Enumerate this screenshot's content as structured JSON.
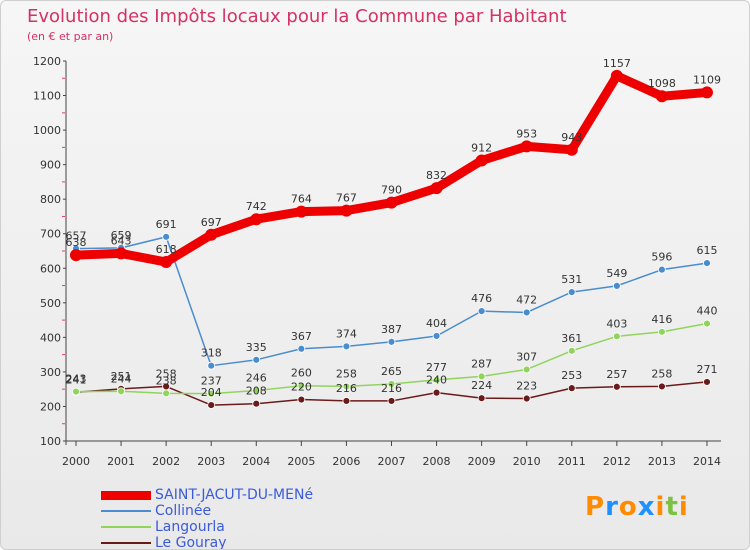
{
  "header": {
    "title": "Evolution des Impôts locaux pour la Commune par Habitant",
    "subtitle": "(en € et par an)"
  },
  "logo": {
    "letters": [
      "P",
      "r",
      "o",
      "x",
      "i",
      "t",
      "i"
    ],
    "colors": [
      "#ff8c00",
      "#1e90ff",
      "#ff8c00",
      "#1e90ff",
      "#ff8c00",
      "#7cc242",
      "#ff8c00"
    ]
  },
  "chart_data": {
    "type": "line",
    "categories": [
      "2000",
      "2001",
      "2002",
      "2003",
      "2004",
      "2005",
      "2006",
      "2007",
      "2008",
      "2009",
      "2010",
      "2011",
      "2012",
      "2013",
      "2014"
    ],
    "ylim": [
      100,
      1200
    ],
    "yticks": [
      "100",
      "200",
      "300",
      "400",
      "500",
      "600",
      "700",
      "800",
      "900",
      "1000",
      "1100",
      "1200"
    ],
    "title": "Evolution des Impôts locaux pour la Commune par Habitant",
    "subtitle": "(en € et par an)",
    "xlabel": "",
    "ylabel": "",
    "grid": false,
    "legend_position": "bottom-left",
    "series": [
      {
        "name": "SAINT-JACUT-DU-MENé",
        "color": "#ee0000",
        "values": [
          638,
          643,
          618,
          697,
          742,
          764,
          767,
          790,
          832,
          912,
          953,
          943,
          1157,
          1098,
          1109
        ]
      },
      {
        "name": "Collinée",
        "color": "#4a8cd0",
        "values": [
          657,
          659,
          691,
          318,
          335,
          367,
          374,
          387,
          404,
          476,
          472,
          531,
          549,
          596,
          615
        ]
      },
      {
        "name": "Langourla",
        "color": "#90d45c",
        "values": [
          243,
          244,
          238,
          237,
          246,
          260,
          258,
          265,
          277,
          287,
          307,
          361,
          403,
          416,
          440
        ]
      },
      {
        "name": "Le Gouray",
        "color": "#6b1a1a",
        "values": [
          241,
          251,
          258,
          204,
          208,
          220,
          216,
          216,
          240,
          224,
          223,
          253,
          257,
          258,
          271
        ]
      }
    ]
  }
}
